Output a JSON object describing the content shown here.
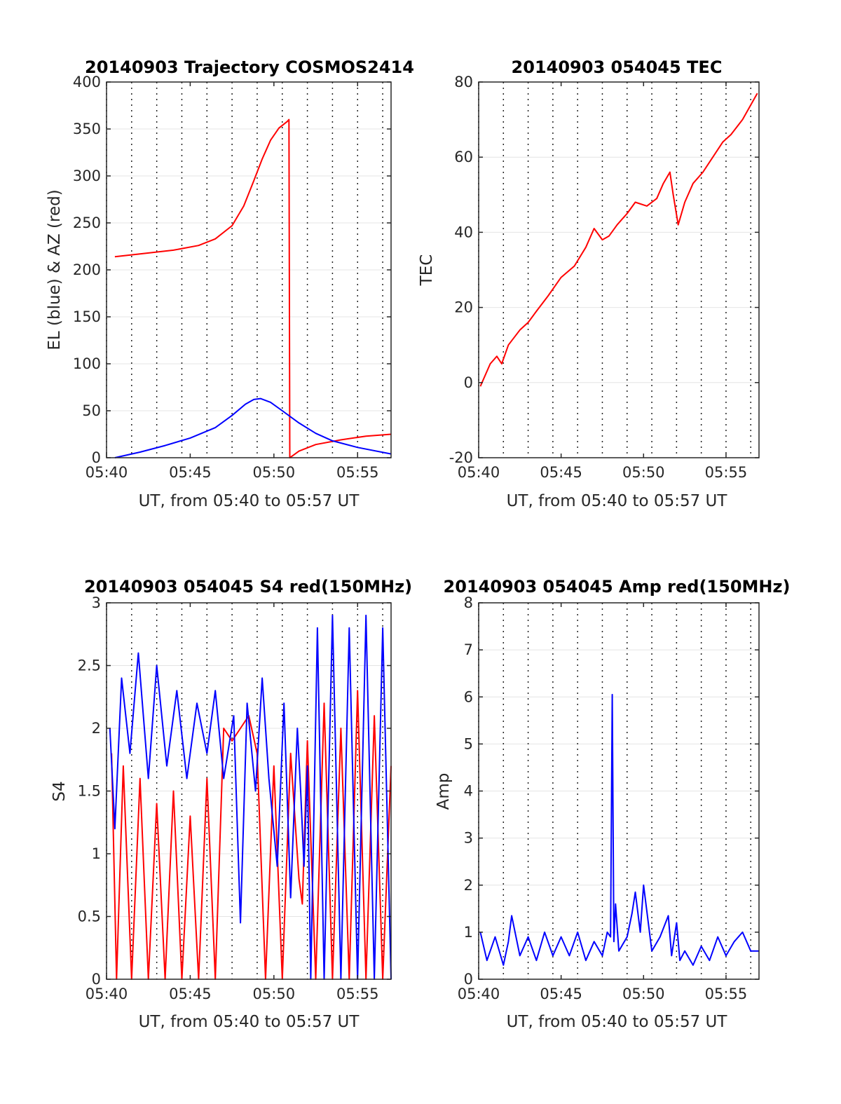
{
  "figure": {
    "colors": {
      "azimuth": "#ff0000",
      "elevation": "#0000ff",
      "tec": "#ff0000",
      "s4_red": "#ff0000",
      "s4_blue": "#0000ff",
      "amp": "#0000ff"
    },
    "time_ticks": [
      "05:40",
      "05:45",
      "05:50",
      "05:55"
    ]
  },
  "chart_data": [
    {
      "id": "trajectory",
      "type": "line",
      "title": "20140903 Trajectory COSMOS2414",
      "xlabel": "UT, from 05:40 to 05:57 UT",
      "ylabel": "EL (blue) & AZ (red)",
      "x_unit": "minutes after 05:40 UT",
      "xlim": [
        0,
        17
      ],
      "ylim": [
        0,
        400
      ],
      "yticks": [
        "0",
        "50",
        "100",
        "150",
        "200",
        "250",
        "300",
        "350",
        "400"
      ],
      "grid": "dotted vertical, solid horizontal",
      "series": [
        {
          "color": "#ff0000",
          "x": [
            0.5,
            2,
            4,
            5.5,
            6.5,
            7.5,
            8.2,
            8.8,
            9.3,
            9.8,
            10.3,
            10.8,
            10.9,
            10.95,
            11.5,
            12.5,
            14,
            15.5,
            17
          ],
          "y": [
            214,
            217,
            221,
            226,
            233,
            247,
            268,
            295,
            318,
            338,
            351,
            358,
            360,
            0,
            7,
            14,
            19,
            23,
            25
          ]
        },
        {
          "color": "#0000ff",
          "x": [
            0.5,
            2,
            3.5,
            5,
            6.5,
            7.5,
            8.3,
            8.8,
            9.2,
            9.8,
            10.5,
            11.5,
            12.5,
            13.5,
            15,
            17
          ],
          "y": [
            0,
            6,
            13,
            21,
            32,
            45,
            57,
            62,
            63,
            59,
            50,
            37,
            26,
            18,
            11,
            4
          ]
        }
      ]
    },
    {
      "id": "tec",
      "type": "line",
      "title": "20140903 054045 TEC",
      "xlabel": "UT, from 05:40 to 05:57 UT",
      "ylabel": "TEC",
      "xlim": [
        0,
        17
      ],
      "ylim": [
        -20,
        80
      ],
      "yticks": [
        "-20",
        "0",
        "20",
        "40",
        "60",
        "80"
      ],
      "series": [
        {
          "color": "#ff0000",
          "x": [
            0.1,
            0.7,
            1.1,
            1.4,
            1.8,
            2.5,
            3.0,
            3.5,
            4.2,
            5.0,
            5.8,
            6.5,
            7.0,
            7.5,
            7.9,
            8.4,
            9.0,
            9.5,
            10.2,
            10.8,
            11.2,
            11.6,
            11.8,
            12.1,
            12.5,
            13.0,
            13.6,
            14.2,
            14.8,
            15.3,
            16.0,
            16.9
          ],
          "y": [
            -1,
            5,
            7,
            5,
            10,
            14,
            16,
            19,
            23,
            28,
            31,
            36,
            41,
            38,
            39,
            42,
            45,
            48,
            47,
            49,
            53,
            56,
            50,
            42,
            48,
            53,
            56,
            60,
            64,
            66,
            70,
            77
          ]
        }
      ]
    },
    {
      "id": "s4",
      "type": "line",
      "title": "20140903 054045 S4 red(150MHz)",
      "xlabel": "UT, from 05:40 to 05:57 UT",
      "ylabel": "S4",
      "xlim": [
        0,
        17
      ],
      "ylim": [
        0,
        3
      ],
      "yticks": [
        "0",
        "0.5",
        "1",
        "1.5",
        "2",
        "2.5",
        "3"
      ],
      "series": [
        {
          "color": "#ff0000",
          "x": [
            0.3,
            0.6,
            1.0,
            1.5,
            2.0,
            2.5,
            3.0,
            3.5,
            4.0,
            4.5,
            5.0,
            5.5,
            6.0,
            6.5,
            7.0,
            7.5,
            8.0,
            8.5,
            9.0,
            9.5,
            10.0,
            10.5,
            11.0,
            11.5,
            11.7,
            12.0,
            12.5,
            13.0,
            13.5,
            14.0,
            14.5,
            15.0,
            15.5,
            16.0,
            16.5,
            17.0
          ],
          "y": [
            1.8,
            0.0,
            1.7,
            0.0,
            1.6,
            0.0,
            1.4,
            0.0,
            1.5,
            0.0,
            1.3,
            0.0,
            1.6,
            0.0,
            2.0,
            1.9,
            2.0,
            2.1,
            1.8,
            0.0,
            1.7,
            0.0,
            1.8,
            0.8,
            0.6,
            1.9,
            0.0,
            2.2,
            0.0,
            2.0,
            0.0,
            2.3,
            0.0,
            2.1,
            0.0,
            1.7
          ]
        },
        {
          "color": "#0000ff",
          "x": [
            0.2,
            0.5,
            0.9,
            1.4,
            1.9,
            2.5,
            3.0,
            3.6,
            4.2,
            4.8,
            5.4,
            6.0,
            6.5,
            7.0,
            7.6,
            8.0,
            8.4,
            8.9,
            9.3,
            9.7,
            10.2,
            10.6,
            11.0,
            11.4,
            11.6,
            11.8,
            12.0,
            12.2,
            12.6,
            13.0,
            13.5,
            14.0,
            14.5,
            15.0,
            15.5,
            16.0,
            16.5,
            17.0
          ],
          "y": [
            2.0,
            1.2,
            2.4,
            1.8,
            2.6,
            1.6,
            2.5,
            1.7,
            2.3,
            1.6,
            2.2,
            1.8,
            2.3,
            1.6,
            2.1,
            0.45,
            2.2,
            1.5,
            2.4,
            1.6,
            0.9,
            2.2,
            0.65,
            2.0,
            1.5,
            0.9,
            1.7,
            0.0,
            2.8,
            0.0,
            2.9,
            0.0,
            2.8,
            0.0,
            2.9,
            0.0,
            2.8,
            0.0
          ]
        }
      ]
    },
    {
      "id": "amp",
      "type": "line",
      "title": "20140903 054045 Amp red(150MHz)",
      "xlabel": "UT, from 05:40 to 05:57 UT",
      "ylabel": "Amp",
      "xlim": [
        0,
        17
      ],
      "ylim": [
        0,
        8
      ],
      "yticks": [
        "0",
        "1",
        "2",
        "3",
        "4",
        "5",
        "6",
        "7",
        "8"
      ],
      "series": [
        {
          "color": "#0000ff",
          "x": [
            0.1,
            0.5,
            1.0,
            1.5,
            1.8,
            2.0,
            2.5,
            3.0,
            3.5,
            4.0,
            4.5,
            5.0,
            5.5,
            6.0,
            6.5,
            7.0,
            7.5,
            7.8,
            8.0,
            8.1,
            8.2,
            8.3,
            8.5,
            9.0,
            9.3,
            9.5,
            9.8,
            10.0,
            10.5,
            11.0,
            11.5,
            11.7,
            12.0,
            12.2,
            12.5,
            13.0,
            13.5,
            14.0,
            14.5,
            15.0,
            15.5,
            16.0,
            16.5,
            17.0
          ],
          "y": [
            1.0,
            0.4,
            0.9,
            0.3,
            0.8,
            1.35,
            0.5,
            0.9,
            0.4,
            1.0,
            0.5,
            0.9,
            0.5,
            1.0,
            0.4,
            0.8,
            0.5,
            1.0,
            0.9,
            6.05,
            0.8,
            1.6,
            0.6,
            0.9,
            1.4,
            1.85,
            1.0,
            2.0,
            0.6,
            0.9,
            1.35,
            0.5,
            1.2,
            0.4,
            0.6,
            0.3,
            0.7,
            0.4,
            0.9,
            0.5,
            0.8,
            1.0,
            0.6,
            0.6
          ]
        }
      ]
    }
  ]
}
